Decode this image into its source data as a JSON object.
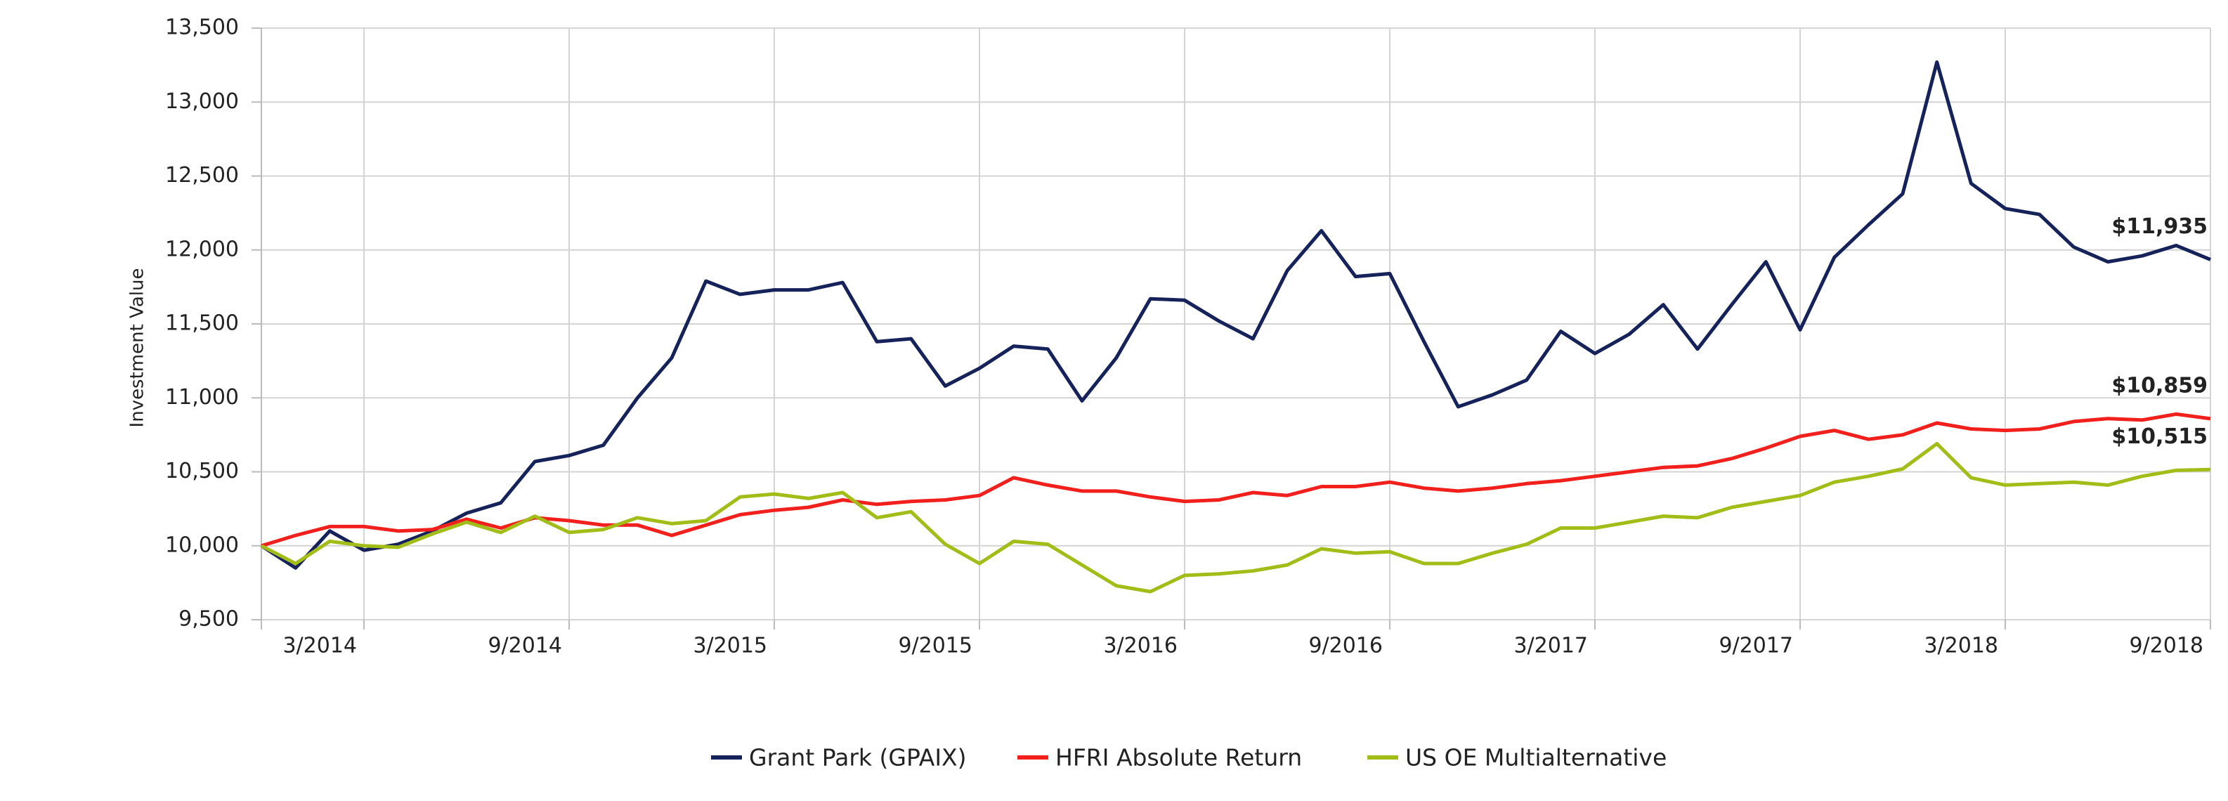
{
  "chart_data": {
    "type": "line",
    "y_label": "Investment Value",
    "categories": [
      null,
      null,
      null,
      "3/2014",
      null,
      null,
      null,
      null,
      null,
      "9/2014",
      null,
      null,
      null,
      null,
      null,
      "3/2015",
      null,
      null,
      null,
      null,
      null,
      "9/2015",
      null,
      null,
      null,
      null,
      null,
      "3/2016",
      null,
      null,
      null,
      null,
      null,
      "9/2016",
      null,
      null,
      null,
      null,
      null,
      "3/2017",
      null,
      null,
      null,
      null,
      null,
      "9/2017",
      null,
      null,
      null,
      null,
      null,
      "3/2018",
      null,
      null,
      null,
      null,
      null,
      "9/2018"
    ],
    "ylim": [
      9500,
      13500
    ],
    "yticks": [
      {
        "value": 9500,
        "label": "9,500"
      },
      {
        "value": 10000,
        "label": "10,000"
      },
      {
        "value": 10500,
        "label": "10,500"
      },
      {
        "value": 11000,
        "label": "11,000"
      },
      {
        "value": 11500,
        "label": "11,500"
      },
      {
        "value": 12000,
        "label": "12,000"
      },
      {
        "value": 12500,
        "label": "12,500"
      },
      {
        "value": 13000,
        "label": "13,000"
      },
      {
        "value": 13500,
        "label": "13,500"
      }
    ],
    "grid": true,
    "legend": "bottom",
    "series": [
      {
        "name": "Grant Park (GPAIX)",
        "color": "#16225a",
        "values": [
          10000,
          9850,
          10100,
          9970,
          10010,
          10100,
          10220,
          10290,
          10570,
          10610,
          10680,
          11000,
          11270,
          11790,
          11700,
          11730,
          11730,
          11780,
          11380,
          11400,
          11080,
          11200,
          11350,
          11330,
          10980,
          11270,
          11670,
          11660,
          11520,
          11400,
          11860,
          12130,
          11820,
          11840,
          11380,
          10940,
          11020,
          11120,
          11450,
          11300,
          11430,
          11630,
          11330,
          11630,
          11920,
          11460,
          11950,
          12170,
          12380,
          13270,
          12450,
          12280,
          12240,
          12020,
          11920,
          11960,
          12030,
          11935
        ],
        "value_labels": [
          null,
          null,
          null,
          null,
          null,
          null,
          null,
          null,
          null,
          null,
          null,
          null,
          null,
          null,
          null,
          null,
          null,
          null,
          null,
          null,
          null,
          null,
          null,
          null,
          null,
          null,
          null,
          null,
          null,
          null,
          null,
          null,
          null,
          null,
          null,
          null,
          null,
          null,
          null,
          null,
          null,
          null,
          null,
          null,
          null,
          null,
          null,
          null,
          null,
          null,
          null,
          null,
          null,
          null,
          null,
          null,
          null,
          "$11,935"
        ]
      },
      {
        "name": "HFRI Absolute Return",
        "color": "#f2201c",
        "values": [
          10000,
          10070,
          10130,
          10130,
          10100,
          10110,
          10180,
          10120,
          10190,
          10170,
          10140,
          10140,
          10070,
          10140,
          10210,
          10240,
          10260,
          10310,
          10280,
          10300,
          10310,
          10340,
          10460,
          10410,
          10370,
          10370,
          10330,
          10300,
          10310,
          10360,
          10340,
          10400,
          10400,
          10430,
          10390,
          10370,
          10390,
          10420,
          10440,
          10470,
          10500,
          10530,
          10540,
          10590,
          10660,
          10740,
          10780,
          10720,
          10750,
          10830,
          10790,
          10780,
          10790,
          10840,
          10860,
          10850,
          10890,
          10859
        ],
        "value_labels": [
          null,
          null,
          null,
          null,
          null,
          null,
          null,
          null,
          null,
          null,
          null,
          null,
          null,
          null,
          null,
          null,
          null,
          null,
          null,
          null,
          null,
          null,
          null,
          null,
          null,
          null,
          null,
          null,
          null,
          null,
          null,
          null,
          null,
          null,
          null,
          null,
          null,
          null,
          null,
          null,
          null,
          null,
          null,
          null,
          null,
          null,
          null,
          null,
          null,
          null,
          null,
          null,
          null,
          null,
          null,
          null,
          null,
          "$10,859"
        ]
      },
      {
        "name": "US OE Multialternative",
        "color": "#a3bd18",
        "values": [
          10000,
          9880,
          10030,
          10000,
          9990,
          10080,
          10160,
          10090,
          10200,
          10090,
          10110,
          10190,
          10150,
          10170,
          10330,
          10350,
          10320,
          10360,
          10190,
          10230,
          10010,
          9880,
          10030,
          10010,
          9870,
          9730,
          9690,
          9800,
          9810,
          9830,
          9870,
          9980,
          9950,
          9960,
          9880,
          9880,
          9950,
          10010,
          10120,
          10120,
          10160,
          10200,
          10190,
          10260,
          10300,
          10340,
          10430,
          10470,
          10520,
          10690,
          10460,
          10410,
          10420,
          10430,
          10410,
          10470,
          10510,
          10515
        ],
        "value_labels": [
          null,
          null,
          null,
          null,
          null,
          null,
          null,
          null,
          null,
          null,
          null,
          null,
          null,
          null,
          null,
          null,
          null,
          null,
          null,
          null,
          null,
          null,
          null,
          null,
          null,
          null,
          null,
          null,
          null,
          null,
          null,
          null,
          null,
          null,
          null,
          null,
          null,
          null,
          null,
          null,
          null,
          null,
          null,
          null,
          null,
          null,
          null,
          null,
          null,
          null,
          null,
          null,
          null,
          null,
          null,
          null,
          null,
          "$10,515"
        ]
      }
    ]
  }
}
